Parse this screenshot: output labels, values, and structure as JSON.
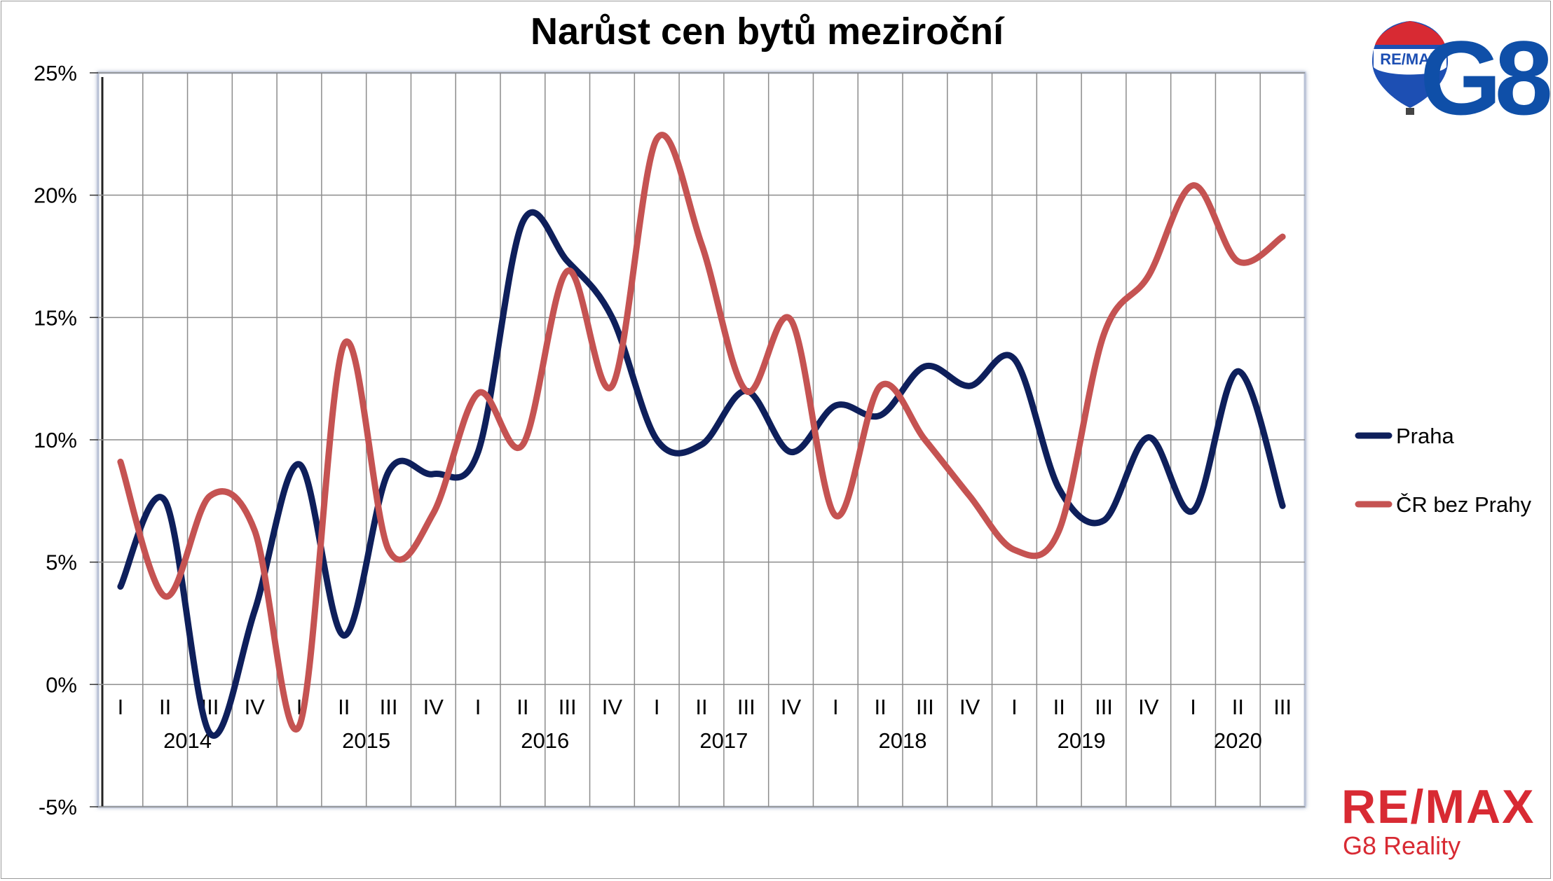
{
  "logo": {
    "balloon_text": "RE/MAX",
    "brand_mark": "G8",
    "remax_word": "RE/MAX",
    "remax_sub": "G8 Reality",
    "colors": {
      "blue": "#0f4fa8",
      "red": "#d82a33"
    }
  },
  "chart_data": {
    "type": "line",
    "title": "Narůst cen bytů meziroční",
    "xlabel": "",
    "ylabel": "",
    "ylim": [
      -5,
      25
    ],
    "yticks": [
      -5,
      0,
      5,
      10,
      15,
      20,
      25
    ],
    "ytick_labels": [
      "-5%",
      "0%",
      "5%",
      "10%",
      "15%",
      "20%",
      "25%"
    ],
    "grid": true,
    "legend_position": "right",
    "quarters": [
      "I",
      "II",
      "III",
      "IV",
      "I",
      "II",
      "III",
      "IV",
      "I",
      "II",
      "III",
      "IV",
      "I",
      "II",
      "III",
      "IV",
      "I",
      "II",
      "III",
      "IV",
      "I",
      "II",
      "III",
      "IV",
      "I",
      "II",
      "III"
    ],
    "years": [
      {
        "label": "2014",
        "start": 0,
        "end": 3
      },
      {
        "label": "2015",
        "start": 4,
        "end": 7
      },
      {
        "label": "2016",
        "start": 8,
        "end": 11
      },
      {
        "label": "2017",
        "start": 12,
        "end": 15
      },
      {
        "label": "2018",
        "start": 16,
        "end": 19
      },
      {
        "label": "2019",
        "start": 20,
        "end": 23
      },
      {
        "label": "2020",
        "start": 24,
        "end": 26
      }
    ],
    "series": [
      {
        "name": "Praha",
        "color": "#0e1f5b",
        "values": [
          4.0,
          7.5,
          -2.0,
          3.0,
          9.0,
          2.0,
          8.7,
          8.6,
          9.5,
          18.9,
          17.3,
          15.0,
          10.0,
          9.8,
          12.0,
          9.5,
          11.4,
          11.0,
          13.0,
          12.2,
          13.3,
          8.0,
          6.7,
          10.1,
          7.1,
          12.8,
          7.3
        ]
      },
      {
        "name": "ČR bez Prahy",
        "color": "#c55352",
        "values": [
          9.1,
          3.6,
          7.7,
          6.3,
          -1.7,
          13.9,
          5.5,
          7.0,
          11.9,
          9.8,
          16.9,
          12.2,
          22.3,
          18.0,
          12.0,
          14.9,
          6.9,
          12.2,
          10.0,
          7.7,
          5.5,
          6.3,
          14.3,
          16.7,
          20.4,
          17.3,
          18.3
        ]
      }
    ]
  }
}
